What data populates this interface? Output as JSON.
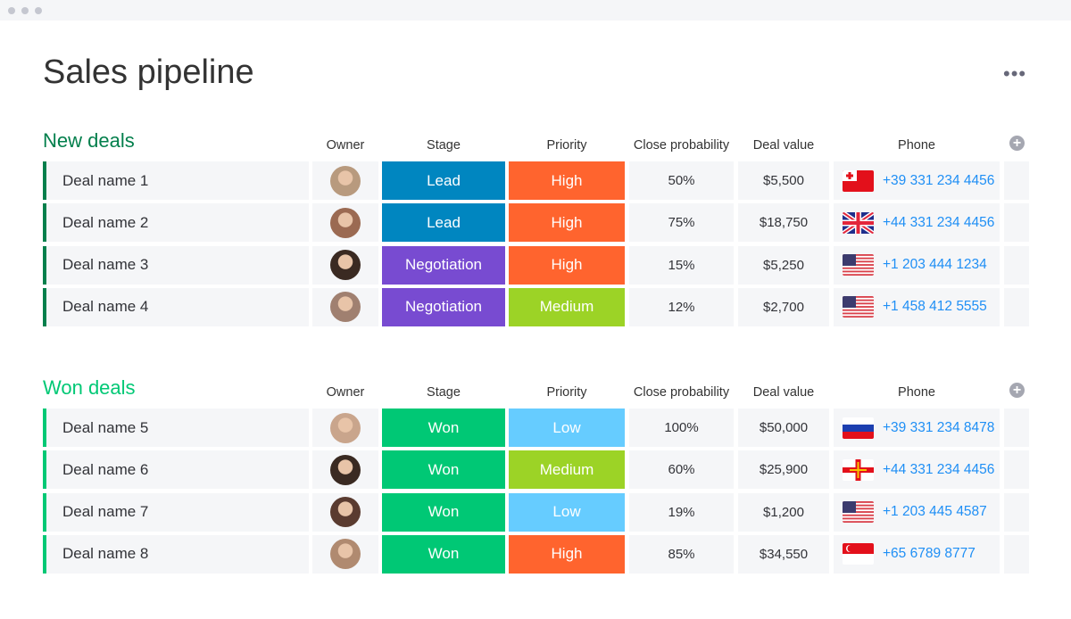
{
  "title": "Sales pipeline",
  "colors": {
    "lead": "#0086c0",
    "negotiation": "#784bd1",
    "won": "#00c875",
    "high": "#ff642e",
    "medium": "#9cd326",
    "low": "#66ccff",
    "new_group": "#037f4c",
    "won_group": "#00c875"
  },
  "columns": {
    "owner": "Owner",
    "stage": "Stage",
    "priority": "Priority",
    "prob": "Close probability",
    "value": "Deal value",
    "phone": "Phone"
  },
  "groups": [
    {
      "title": "New deals",
      "color": "#037f4c",
      "rows": [
        {
          "name": "Deal name 1",
          "stage": "Lead",
          "stage_color": "#0086c0",
          "priority": "High",
          "priority_color": "#ff642e",
          "prob": "50%",
          "value": "$5,500",
          "flag": "tonga",
          "phone": "+39 331 234 4456",
          "avatar": "#b89a7e"
        },
        {
          "name": "Deal name 2",
          "stage": "Lead",
          "stage_color": "#0086c0",
          "priority": "High",
          "priority_color": "#ff642e",
          "prob": "75%",
          "value": "$18,750",
          "flag": "uk",
          "phone": "+44 331 234 4456",
          "avatar": "#9b6a52"
        },
        {
          "name": "Deal name 3",
          "stage": "Negotiation",
          "stage_color": "#784bd1",
          "priority": "High",
          "priority_color": "#ff642e",
          "prob": "15%",
          "value": "$5,250",
          "flag": "us",
          "phone": "+1 203 444 1234",
          "avatar": "#3a2a22"
        },
        {
          "name": "Deal name 4",
          "stage": "Negotiation",
          "stage_color": "#784bd1",
          "priority": "Medium",
          "priority_color": "#9cd326",
          "prob": "12%",
          "value": "$2,700",
          "flag": "us",
          "phone": "+1 458 412 5555",
          "avatar": "#a08070"
        }
      ]
    },
    {
      "title": "Won deals",
      "color": "#00c875",
      "rows": [
        {
          "name": "Deal name 5",
          "stage": "Won",
          "stage_color": "#00c875",
          "priority": "Low",
          "priority_color": "#66ccff",
          "prob": "100%",
          "value": "$50,000",
          "flag": "russia",
          "phone": "+39 331 234 8478",
          "avatar": "#c9a58c"
        },
        {
          "name": "Deal name 6",
          "stage": "Won",
          "stage_color": "#00c875",
          "priority": "Medium",
          "priority_color": "#9cd326",
          "prob": "60%",
          "value": "$25,900",
          "flag": "guernsey",
          "phone": "+44 331 234 4456",
          "avatar": "#3a2a22"
        },
        {
          "name": "Deal name 7",
          "stage": "Won",
          "stage_color": "#00c875",
          "priority": "Low",
          "priority_color": "#66ccff",
          "prob": "19%",
          "value": "$1,200",
          "flag": "us",
          "phone": "+1 203 445 4587",
          "avatar": "#5a3b30"
        },
        {
          "name": "Deal name 8",
          "stage": "Won",
          "stage_color": "#00c875",
          "priority": "High",
          "priority_color": "#ff642e",
          "prob": "85%",
          "value": "$34,550",
          "flag": "singapore",
          "phone": "+65 6789 8777",
          "avatar": "#b08a70"
        }
      ]
    }
  ]
}
